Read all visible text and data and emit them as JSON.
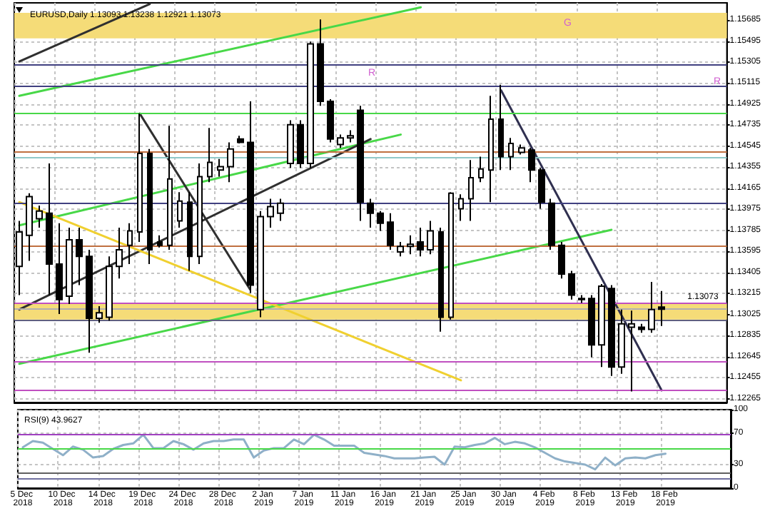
{
  "chart_data": [
    {
      "type": "candlestick",
      "title": "EURUSD,Daily 1.13093 1.13238 1.12921 1.13073",
      "categories": [
        "5 Dec 2018",
        null,
        null,
        null,
        "10 Dec 2018",
        null,
        null,
        null,
        "14 Dec 2018",
        null,
        null,
        null,
        "19 Dec 2018",
        null,
        null,
        null,
        "24 Dec 2018",
        null,
        null,
        null,
        "28 Dec 2018",
        null,
        null,
        null,
        "2 Jan 2019",
        null,
        null,
        null,
        "7 Jan 2019",
        null,
        null,
        null,
        "11 Jan 2019",
        null,
        null,
        null,
        "16 Jan 2019",
        null,
        null,
        null,
        "21 Jan 2019",
        null,
        null,
        null,
        "25 Jan 2019",
        null,
        null,
        null,
        "30 Jan 2019",
        null,
        null,
        null,
        "4 Feb 2019",
        null,
        null,
        null,
        "8 Feb 2019",
        null,
        null,
        null,
        "13 Feb 2019",
        null,
        null,
        null,
        "18 Feb 2019",
        null,
        null,
        null,
        null,
        null,
        null
      ],
      "ohlc": [
        [
          1.1346,
          1.1387,
          1.132,
          1.1377
        ],
        [
          1.1374,
          1.1412,
          1.1351,
          1.1409
        ],
        [
          1.1389,
          1.1401,
          1.1381,
          1.1396
        ],
        [
          1.1394,
          1.1439,
          1.132,
          1.1348
        ],
        [
          1.1348,
          1.1385,
          1.1303,
          1.1316
        ],
        [
          1.1319,
          1.1381,
          1.1312,
          1.137
        ],
        [
          1.137,
          1.1381,
          1.1329,
          1.1355
        ],
        [
          1.1355,
          1.1361,
          1.1268,
          1.1299
        ],
        [
          1.1299,
          1.131,
          1.1295,
          1.1304
        ],
        [
          1.13,
          1.1355,
          1.1297,
          1.1346
        ],
        [
          1.1346,
          1.1381,
          1.1335,
          1.1361
        ],
        [
          1.1365,
          1.1385,
          1.1348,
          1.1378
        ],
        [
          1.1377,
          1.1484,
          1.1368,
          1.1448
        ],
        [
          1.1448,
          1.1452,
          1.1348,
          1.1361
        ],
        [
          1.1368,
          1.1374,
          1.1363,
          1.1365
        ],
        [
          1.1365,
          1.1473,
          1.1361,
          1.1425
        ],
        [
          1.1387,
          1.1413,
          1.1381,
          1.1405
        ],
        [
          1.1404,
          1.1413,
          1.1342,
          1.1355
        ],
        [
          1.1355,
          1.1439,
          1.1348,
          1.1427
        ],
        [
          1.1427,
          1.1471,
          1.1422,
          1.144
        ],
        [
          1.1433,
          1.1443,
          1.1427,
          1.1436
        ],
        [
          1.1436,
          1.1458,
          1.1422,
          1.1452
        ],
        [
          1.1461,
          1.1464,
          1.1457,
          1.1458
        ],
        [
          1.1458,
          1.1495,
          1.1322,
          1.1329
        ],
        [
          1.1307,
          1.1396,
          1.13,
          1.1391
        ],
        [
          1.1391,
          1.1407,
          1.1381,
          1.14
        ],
        [
          1.1394,
          1.1407,
          1.1387,
          1.1403
        ],
        [
          1.1439,
          1.1478,
          1.1435,
          1.1474
        ],
        [
          1.1474,
          1.1478,
          1.1435,
          1.1439
        ],
        [
          1.1439,
          1.1549,
          1.1435,
          1.1547
        ],
        [
          1.1547,
          1.1569,
          1.1491,
          1.1495
        ],
        [
          1.1495,
          1.1497,
          1.1458,
          1.1461
        ],
        [
          1.1456,
          1.1465,
          1.1453,
          1.1462
        ],
        [
          1.1462,
          1.1469,
          1.1458,
          1.1464
        ],
        [
          1.1487,
          1.1491,
          1.1387,
          1.1404
        ],
        [
          1.1403,
          1.1407,
          1.1381,
          1.1394
        ],
        [
          1.1394,
          1.1396,
          1.1378,
          1.1385
        ],
        [
          1.1386,
          1.1394,
          1.1361,
          1.1365
        ],
        [
          1.1359,
          1.1368,
          1.1355,
          1.1364
        ],
        [
          1.1364,
          1.1374,
          1.1357,
          1.1366
        ],
        [
          1.1368,
          1.1381,
          1.1355,
          1.1361
        ],
        [
          1.1361,
          1.1387,
          1.1357,
          1.1378
        ],
        [
          1.1377,
          1.1381,
          1.1287,
          1.13
        ],
        [
          1.13,
          1.1413,
          1.1298,
          1.1412
        ],
        [
          1.1398,
          1.1411,
          1.1387,
          1.1407
        ],
        [
          1.1407,
          1.1442,
          1.1387,
          1.1426
        ],
        [
          1.1426,
          1.1445,
          1.1422,
          1.1434
        ],
        [
          1.1433,
          1.15,
          1.1404,
          1.1479
        ],
        [
          1.1479,
          1.151,
          1.1433,
          1.1445
        ],
        [
          1.1445,
          1.1462,
          1.1433,
          1.1457
        ],
        [
          1.1449,
          1.1456,
          1.1447,
          1.1453
        ],
        [
          1.1451,
          1.1453,
          1.1422,
          1.1433
        ],
        [
          1.1433,
          1.1435,
          1.1398,
          1.1404
        ],
        [
          1.1403,
          1.1407,
          1.1361,
          1.1365
        ],
        [
          1.1365,
          1.1368,
          1.1335,
          1.1339
        ],
        [
          1.1339,
          1.1342,
          1.1316,
          1.132
        ],
        [
          1.1317,
          1.132,
          1.1313,
          1.1316
        ],
        [
          1.1317,
          1.132,
          1.1264,
          1.1275
        ],
        [
          1.1275,
          1.133,
          1.1255,
          1.1328
        ],
        [
          1.1326,
          1.1329,
          1.1247,
          1.1255
        ],
        [
          1.1255,
          1.1307,
          1.1249,
          1.1294
        ],
        [
          1.1291,
          1.1306,
          1.1233,
          1.1294
        ],
        [
          1.1291,
          1.1294,
          1.1286,
          1.1289
        ],
        [
          1.1289,
          1.1332,
          1.1286,
          1.1307
        ],
        [
          1.13093,
          1.13238,
          1.12921,
          1.13073
        ],
        null,
        null,
        null,
        null,
        null,
        null
      ],
      "series": [
        {
          "type": "line",
          "color": "#303030",
          "values": [
            1.1531,
            null,
            null,
            null,
            null,
            null,
            null,
            null,
            null,
            null,
            null,
            null,
            null,
            1.1583,
            null,
            null,
            null,
            null,
            null,
            null,
            null,
            null,
            null,
            null,
            null,
            null,
            null,
            null,
            null,
            null,
            null,
            null,
            null,
            null,
            null,
            null,
            null,
            null,
            null,
            null,
            null,
            null,
            null,
            null,
            null,
            null,
            null,
            null,
            null,
            null,
            null,
            null,
            null,
            null,
            null,
            null,
            null,
            null,
            null,
            null,
            null,
            null,
            null,
            null,
            null,
            null,
            null,
            null,
            null,
            null,
            null
          ]
        },
        {
          "type": "line",
          "color": "#48d848",
          "values": [
            1.15,
            null,
            null,
            null,
            null,
            null,
            null,
            null,
            null,
            null,
            null,
            null,
            null,
            null,
            null,
            null,
            null,
            null,
            null,
            null,
            null,
            null,
            null,
            null,
            null,
            null,
            null,
            null,
            null,
            null,
            null,
            null,
            null,
            null,
            null,
            null,
            null,
            null,
            null,
            null,
            1.158,
            null,
            null,
            null,
            null,
            null,
            null,
            null,
            null,
            null,
            null,
            null,
            null,
            null,
            null,
            null,
            null,
            null,
            null,
            null,
            null,
            null,
            null,
            null,
            null,
            null,
            null,
            null,
            null,
            null,
            null
          ]
        },
        {
          "type": "line",
          "color": "#48d848",
          "values": [
            1.1383,
            null,
            null,
            null,
            null,
            null,
            null,
            null,
            null,
            null,
            null,
            null,
            null,
            null,
            null,
            null,
            null,
            null,
            null,
            null,
            null,
            null,
            null,
            null,
            null,
            null,
            null,
            null,
            null,
            null,
            null,
            null,
            null,
            null,
            null,
            null,
            null,
            null,
            1.1465,
            null,
            null,
            null,
            null,
            null,
            null,
            null,
            null,
            null,
            null,
            null,
            null,
            null,
            null,
            null,
            null,
            null,
            null,
            null,
            null,
            null,
            null,
            null,
            null,
            null,
            null,
            null,
            null,
            null,
            null,
            null,
            null
          ]
        },
        {
          "type": "line",
          "color": "#48d848",
          "values": [
            1.1258,
            null,
            null,
            null,
            null,
            null,
            null,
            null,
            null,
            null,
            null,
            null,
            null,
            null,
            null,
            null,
            null,
            null,
            null,
            null,
            null,
            null,
            null,
            null,
            null,
            null,
            null,
            null,
            null,
            null,
            null,
            null,
            null,
            null,
            null,
            null,
            null,
            null,
            null,
            null,
            null,
            null,
            null,
            null,
            null,
            null,
            null,
            null,
            null,
            null,
            null,
            null,
            null,
            null,
            null,
            null,
            null,
            null,
            null,
            1.1379,
            null,
            null,
            null,
            null,
            null,
            null,
            null,
            null,
            null,
            null,
            null
          ]
        },
        {
          "type": "line",
          "color": "#303030",
          "values": [
            1.1307,
            null,
            null,
            null,
            null,
            null,
            null,
            null,
            null,
            null,
            null,
            null,
            null,
            null,
            null,
            null,
            null,
            null,
            null,
            null,
            null,
            null,
            null,
            null,
            null,
            null,
            null,
            null,
            null,
            null,
            null,
            null,
            null,
            null,
            null,
            1.1461,
            null,
            null,
            null,
            null,
            null,
            null,
            null,
            null,
            null,
            null,
            null,
            null,
            null,
            null,
            null,
            null,
            null,
            null,
            null,
            null,
            null,
            null,
            null,
            null,
            null,
            null,
            null,
            null,
            null,
            null,
            null,
            null,
            null,
            null,
            null
          ]
        },
        {
          "type": "line",
          "color": "#303030",
          "values": [
            null,
            null,
            null,
            null,
            null,
            null,
            null,
            null,
            null,
            null,
            null,
            null,
            1.1484,
            null,
            null,
            null,
            null,
            null,
            null,
            null,
            null,
            null,
            null,
            1.1325,
            null,
            null,
            null,
            null,
            null,
            null,
            null,
            null,
            null,
            null,
            null,
            null,
            null,
            null,
            null,
            null,
            null,
            null,
            null,
            null,
            null,
            null,
            null,
            null,
            null,
            null,
            null,
            null,
            null,
            null,
            null,
            null,
            null,
            null,
            null,
            null,
            null,
            null,
            null,
            null,
            null,
            null,
            null,
            null,
            null,
            null,
            null
          ]
        },
        {
          "type": "line",
          "color": "#f0d030",
          "values": [
            1.1404,
            null,
            null,
            null,
            null,
            null,
            null,
            null,
            null,
            null,
            null,
            null,
            null,
            null,
            null,
            null,
            null,
            null,
            null,
            null,
            null,
            null,
            null,
            null,
            null,
            null,
            null,
            null,
            null,
            null,
            null,
            null,
            null,
            null,
            null,
            null,
            null,
            null,
            null,
            null,
            null,
            null,
            null,
            null,
            1.1243,
            null,
            null,
            null,
            null,
            null,
            null,
            null,
            null,
            null,
            null,
            null,
            null,
            null,
            null,
            null,
            null,
            null,
            null,
            null,
            null,
            null,
            null,
            null,
            null,
            null,
            null
          ]
        },
        {
          "type": "line",
          "color": "#303050",
          "values": [
            null,
            null,
            null,
            null,
            null,
            null,
            null,
            null,
            null,
            null,
            null,
            null,
            null,
            null,
            null,
            null,
            null,
            null,
            null,
            null,
            null,
            null,
            null,
            null,
            null,
            null,
            null,
            null,
            null,
            null,
            null,
            null,
            null,
            null,
            null,
            null,
            null,
            null,
            null,
            null,
            null,
            null,
            null,
            null,
            null,
            null,
            null,
            null,
            1.1505,
            null,
            null,
            null,
            null,
            null,
            null,
            null,
            null,
            null,
            null,
            null,
            null,
            null,
            null,
            null,
            1.1234,
            null,
            null,
            null,
            null,
            null,
            null
          ]
        }
      ],
      "ylim": [
        1.1223,
        1.1584
      ],
      "yticks": [
        1.12265,
        1.12455,
        1.12645,
        1.12835,
        1.13025,
        1.13215,
        1.13405,
        1.13595,
        1.13785,
        1.13975,
        1.14165,
        1.14355,
        1.14545,
        1.14735,
        1.14925,
        1.15115,
        1.15305,
        1.15495,
        1.15685
      ],
      "ref_lines": [
        {
          "axis": "y",
          "value": 1.1528,
          "color": "#404080"
        },
        {
          "axis": "y",
          "value": 1.1509,
          "color": "#404080"
        },
        {
          "axis": "y",
          "value": 1.1484,
          "color": "#48d848"
        },
        {
          "axis": "y",
          "value": 1.1449,
          "color": "#c07040"
        },
        {
          "axis": "y",
          "value": 1.1445,
          "color": "#90c8c8"
        },
        {
          "axis": "y",
          "value": 1.1403,
          "color": "#404080"
        },
        {
          "axis": "y",
          "value": 1.1365,
          "color": "#c07040"
        },
        {
          "axis": "y",
          "value": 1.1313,
          "color": "#c050c0"
        },
        {
          "axis": "y",
          "value": 1.13073,
          "color": "#b0b0b0",
          "label": "1.13073"
        },
        {
          "axis": "y",
          "value": 1.1297,
          "color": "#606080"
        },
        {
          "axis": "y",
          "value": 1.126,
          "color": "#c050c0"
        },
        {
          "axis": "y",
          "value": 1.1234,
          "color": "#c050c0"
        }
      ],
      "bands": [
        {
          "axis": "y",
          "from": 1.1552,
          "to": 1.1575,
          "color": "#f5dc78"
        },
        {
          "axis": "y",
          "from": 1.1298,
          "to": 1.1312,
          "color": "#f5dc78"
        }
      ],
      "annotations": [
        "G",
        "R",
        "R"
      ],
      "grid": true,
      "tick_labels": "y"
    },
    {
      "type": "line",
      "title": "RSI(9) 43.9627",
      "categories": [
        "5 Dec 2018",
        null,
        null,
        null,
        "10 Dec 2018",
        null,
        null,
        null,
        "14 Dec 2018",
        null,
        null,
        null,
        "19 Dec 2018",
        null,
        null,
        null,
        "24 Dec 2018",
        null,
        null,
        null,
        "28 Dec 2018",
        null,
        null,
        null,
        "2 Jan 2019",
        null,
        null,
        null,
        "7 Jan 2019",
        null,
        null,
        null,
        "11 Jan 2019",
        null,
        null,
        null,
        "16 Jan 2019",
        null,
        null,
        null,
        "21 Jan 2019",
        null,
        null,
        null,
        "25 Jan 2019",
        null,
        null,
        null,
        "30 Jan 2019",
        null,
        null,
        null,
        "4 Feb 2019",
        null,
        null,
        null,
        "8 Feb 2019",
        null,
        null,
        null,
        "13 Feb 2019",
        null,
        null,
        null,
        "18 Feb 2019",
        null,
        null,
        null,
        null,
        null,
        null
      ],
      "series": [
        {
          "color": "#8fb0c8",
          "values": [
            52,
            60,
            58,
            50,
            42,
            53,
            49,
            39,
            41,
            50,
            55,
            57,
            68,
            51,
            51,
            60,
            56,
            49,
            57,
            60,
            60,
            62,
            62,
            39,
            48,
            51,
            51,
            62,
            56,
            68,
            62,
            54,
            54,
            54,
            45,
            43,
            41,
            38,
            38,
            38,
            39,
            40,
            30,
            53,
            52,
            55,
            57,
            64,
            56,
            59,
            57,
            52,
            45,
            38,
            34,
            32,
            30,
            24,
            39,
            29,
            38,
            39,
            38,
            42,
            43.96,
            null,
            null,
            null,
            null,
            null,
            null
          ]
        }
      ],
      "ylim": [
        0,
        100
      ],
      "yticks": [
        0,
        30,
        70,
        100
      ],
      "ref_lines": [
        {
          "axis": "y",
          "value": 68,
          "color": "#a040c0"
        },
        {
          "axis": "y",
          "value": 50,
          "color": "#48d848"
        },
        {
          "axis": "y",
          "value": 19,
          "color": "#606060"
        },
        {
          "axis": "y",
          "value": 12,
          "color": "#7070a0"
        }
      ],
      "grid": true
    }
  ]
}
